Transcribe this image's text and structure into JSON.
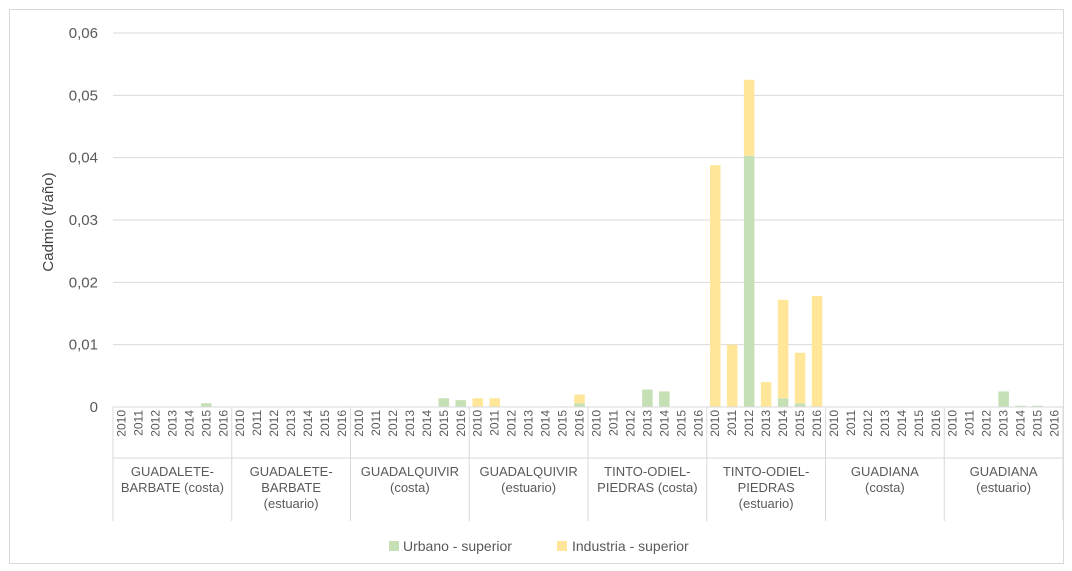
{
  "chart_data": {
    "type": "bar",
    "stacked": true,
    "title": "",
    "ylabel": "Cadmio (t/año)",
    "xlabel": "",
    "ylim": [
      0,
      0.06
    ],
    "yticks": [
      "0",
      "0,01",
      "0,02",
      "0,03",
      "0,04",
      "0,05",
      "0,06"
    ],
    "years": [
      "2010",
      "2011",
      "2012",
      "2013",
      "2014",
      "2015",
      "2016"
    ],
    "groups": [
      {
        "label_lines": [
          "GUADALETE-",
          "BARBATE (costa)"
        ]
      },
      {
        "label_lines": [
          "GUADALETE-",
          "BARBATE",
          "(estuario)"
        ]
      },
      {
        "label_lines": [
          "GUADALQUIVIR",
          "(costa)"
        ]
      },
      {
        "label_lines": [
          "GUADALQUIVIR",
          "(estuario)"
        ]
      },
      {
        "label_lines": [
          "TINTO-ODIEL-",
          "PIEDRAS (costa)"
        ]
      },
      {
        "label_lines": [
          "TINTO-ODIEL-",
          "PIEDRAS",
          "(estuario)"
        ]
      },
      {
        "label_lines": [
          "GUADIANA",
          "(costa)"
        ]
      },
      {
        "label_lines": [
          "GUADIANA",
          "(estuario)"
        ]
      }
    ],
    "series": [
      {
        "name": "Urbano - superior",
        "color": "#c5e0b4",
        "values": [
          [
            0,
            0,
            0,
            0,
            0,
            0.0006,
            0
          ],
          [
            0,
            0,
            0,
            0,
            0,
            0,
            0
          ],
          [
            0,
            0,
            0,
            0,
            0,
            0.0014,
            0.0011
          ],
          [
            0,
            0,
            0,
            0,
            0,
            0.0001,
            0.0006
          ],
          [
            0,
            0,
            0,
            0.0028,
            0.0025,
            0,
            0
          ],
          [
            0,
            0,
            0.0403,
            0,
            0.0014,
            0.0006,
            0
          ],
          [
            0,
            0,
            0,
            0,
            0,
            0,
            0
          ],
          [
            0,
            0,
            0,
            0.0025,
            0.0002,
            0.0002,
            0
          ]
        ]
      },
      {
        "name": "Industria - superior",
        "color": "#ffe699",
        "values": [
          [
            0,
            0,
            0,
            0,
            0,
            0,
            0
          ],
          [
            0,
            0,
            0,
            0,
            0,
            0,
            0
          ],
          [
            0,
            0,
            0,
            0,
            0,
            0,
            0
          ],
          [
            0.0014,
            0.0014,
            0,
            0,
            0,
            0,
            0.0014
          ],
          [
            0,
            0,
            0,
            0,
            0,
            0,
            0
          ],
          [
            0.0388,
            0.01,
            0.0122,
            0.004,
            0.0158,
            0.0081,
            0.0178
          ],
          [
            0,
            0,
            0,
            0,
            0,
            0,
            0
          ],
          [
            0,
            0,
            0,
            0,
            0,
            0,
            0
          ]
        ]
      }
    ],
    "legend": {
      "position": "bottom"
    },
    "grid": true
  }
}
